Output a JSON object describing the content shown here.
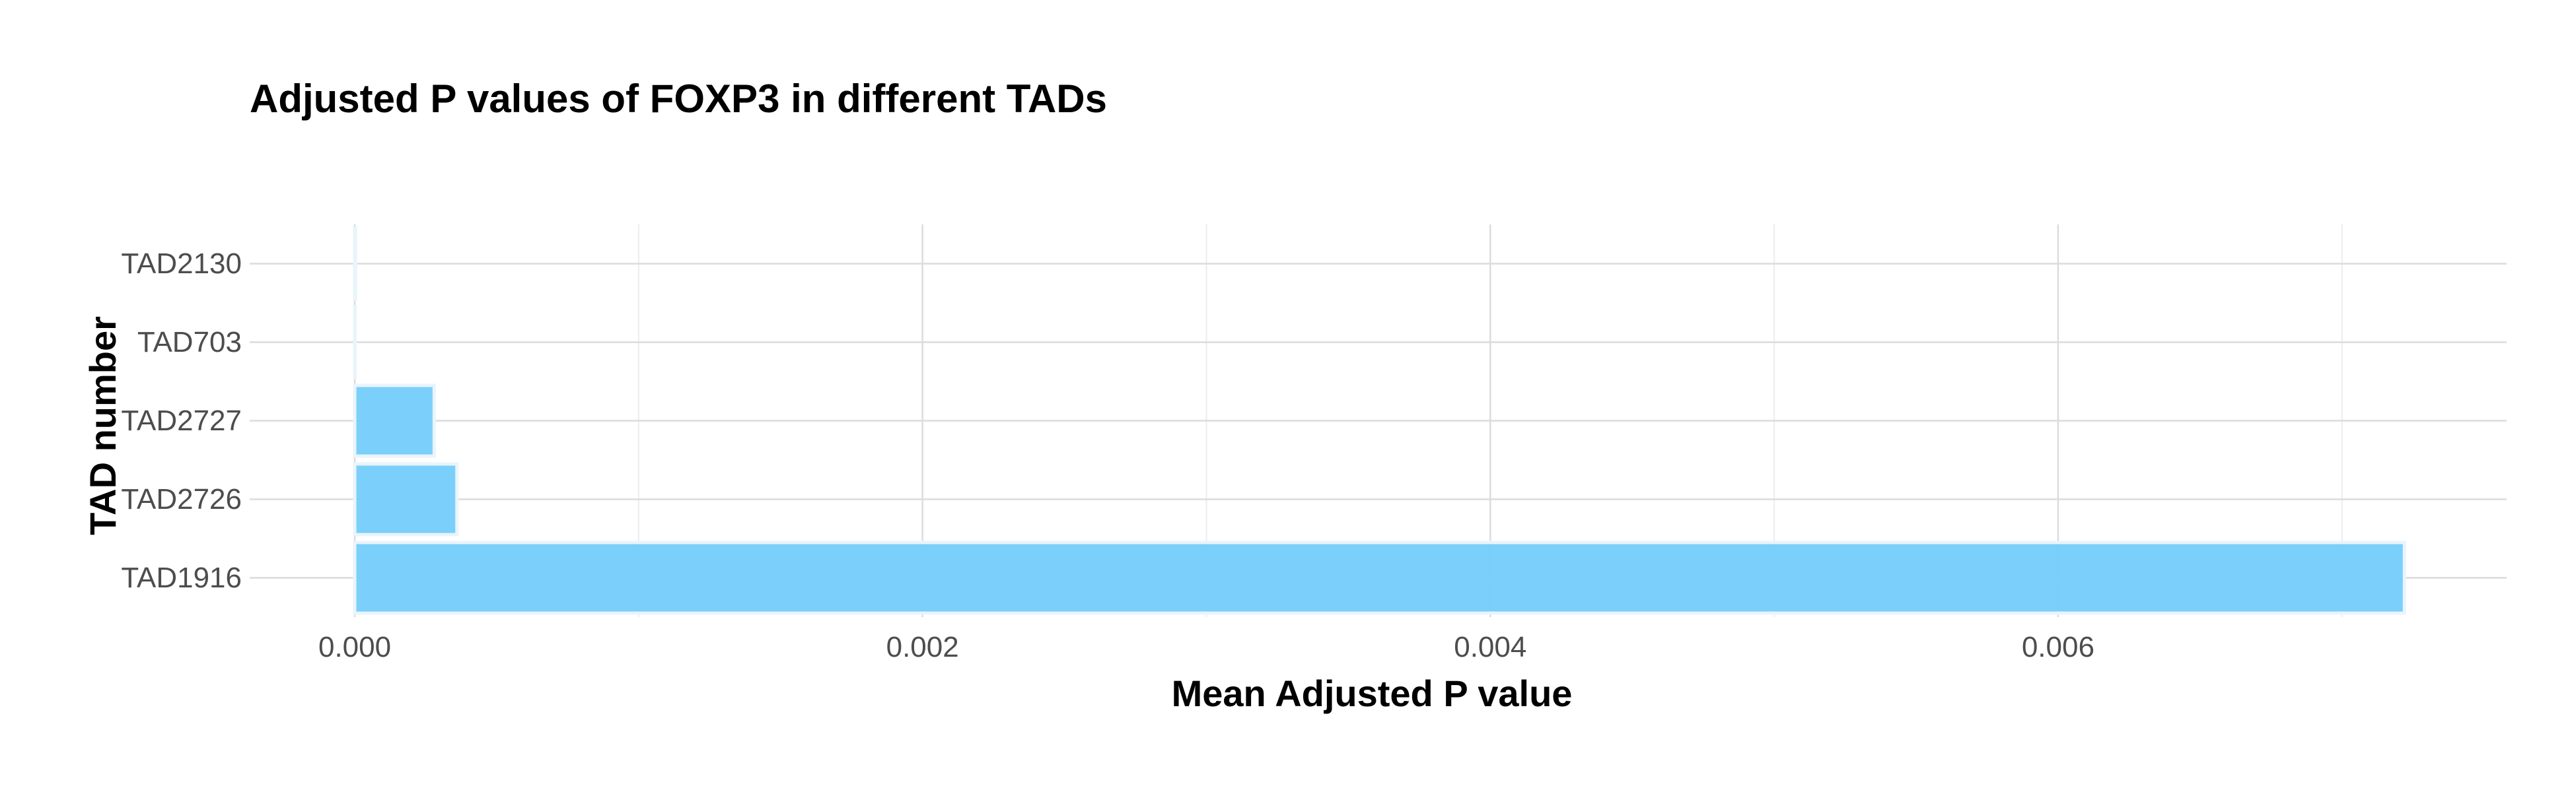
{
  "chart_data": {
    "type": "bar",
    "orientation": "horizontal",
    "title": "Adjusted P values of FOXP3 in different TADs",
    "xlabel": "Mean Adjusted P value",
    "ylabel": "TAD number",
    "categories": [
      "TAD1916",
      "TAD2726",
      "TAD2727",
      "TAD703",
      "TAD2130"
    ],
    "values": [
      0.00722,
      0.00036,
      0.00028,
      5e-07,
      3e-06
    ],
    "xlim": [
      -0.00037,
      0.00758
    ],
    "x_ticks": [
      0.0,
      0.002,
      0.004,
      0.006
    ],
    "x_tick_labels": [
      "0.000",
      "0.002",
      "0.004",
      "0.006"
    ],
    "grid": true,
    "legend": "none",
    "colors": {
      "bar_fill": "#73cefa",
      "bar_stroke": "#eaf4fb",
      "grid_major": "#dcdcdc",
      "grid_minor": "#ececec",
      "tick_label": "#4d4d4d",
      "title": "#000000"
    }
  }
}
